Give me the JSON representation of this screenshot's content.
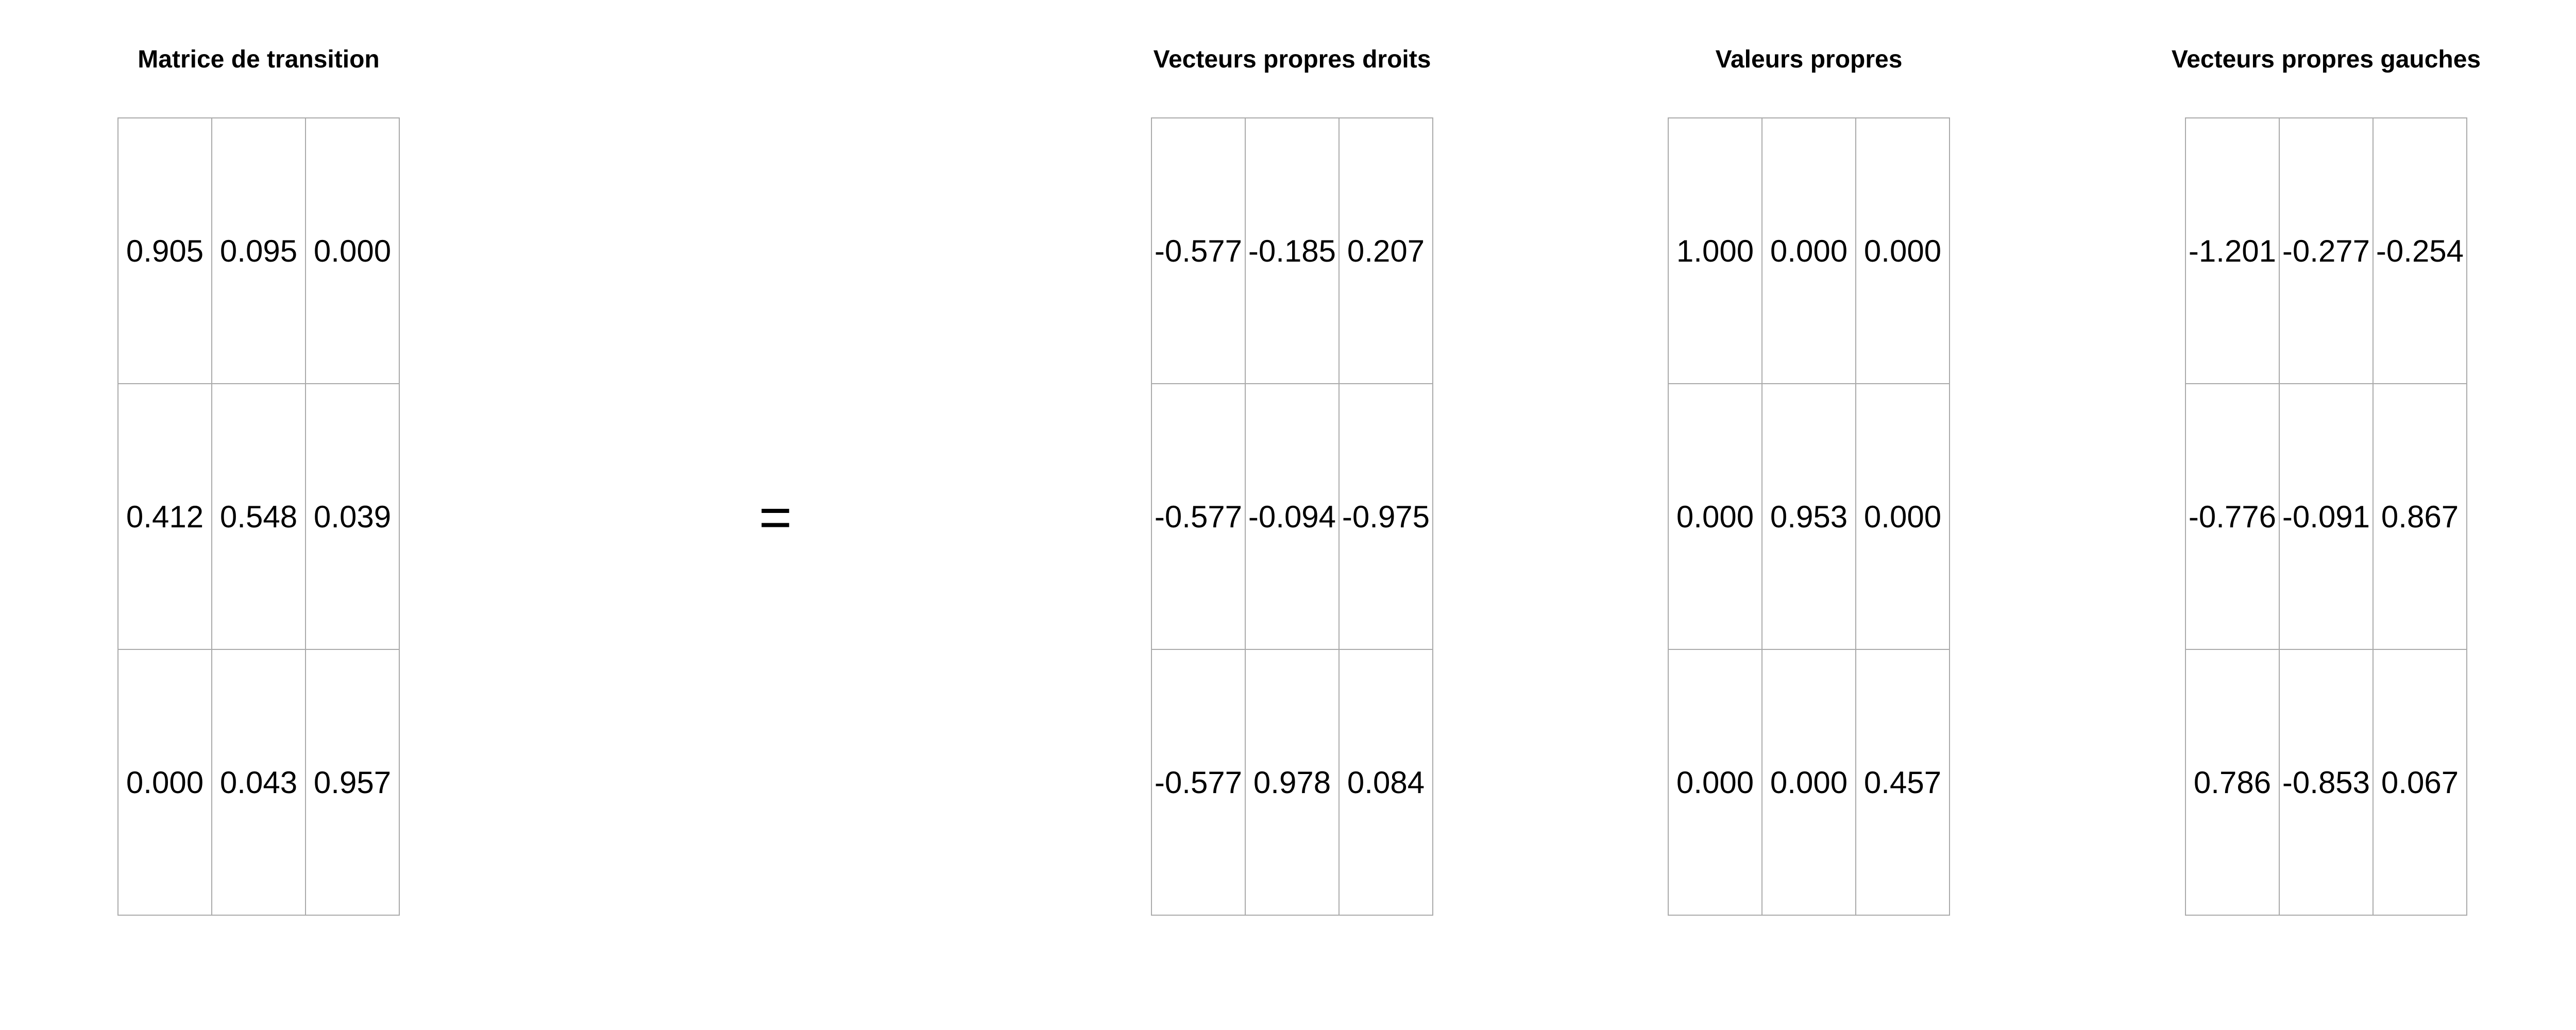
{
  "matrices": [
    {
      "title": "Matrice de transition",
      "rows": [
        [
          "0.905",
          "0.095",
          "0.000"
        ],
        [
          "0.412",
          "0.548",
          "0.039"
        ],
        [
          "0.000",
          "0.043",
          "0.957"
        ]
      ]
    },
    {
      "title": "Vecteurs propres droits",
      "rows": [
        [
          "-0.577",
          "-0.185",
          "0.207"
        ],
        [
          "-0.577",
          "-0.094",
          "-0.975"
        ],
        [
          "-0.577",
          "0.978",
          "0.084"
        ]
      ]
    },
    {
      "title": "Valeurs propres",
      "rows": [
        [
          "1.000",
          "0.000",
          "0.000"
        ],
        [
          "0.000",
          "0.953",
          "0.000"
        ],
        [
          "0.000",
          "0.000",
          "0.457"
        ]
      ]
    },
    {
      "title": "Vecteurs propres gauches",
      "rows": [
        [
          "-1.201",
          "-0.277",
          "-0.254"
        ],
        [
          "-0.776",
          "-0.091",
          "0.867"
        ],
        [
          "0.786",
          "-0.853",
          "0.067"
        ]
      ]
    }
  ],
  "operator": "="
}
